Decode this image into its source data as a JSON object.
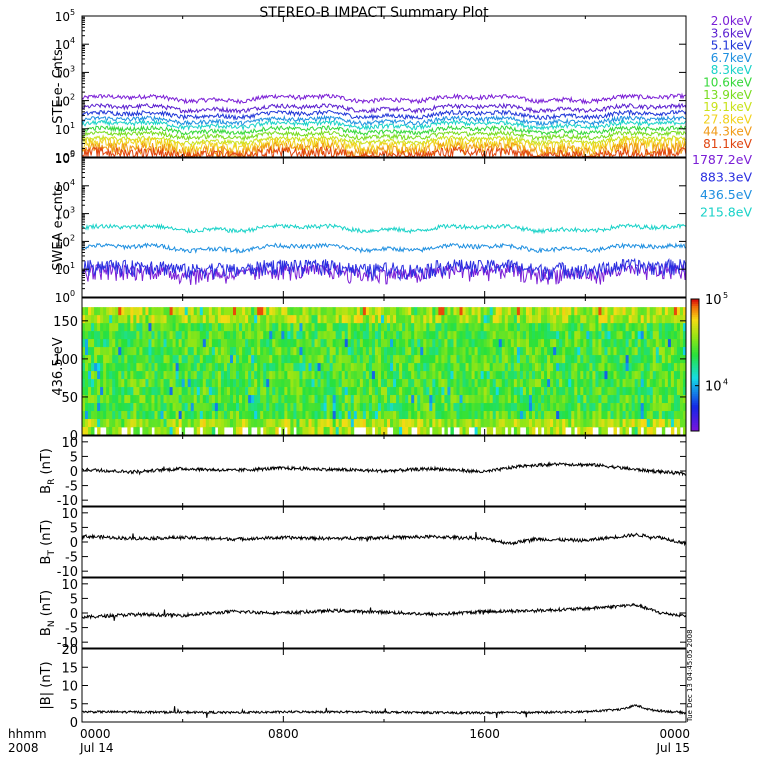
{
  "title": "STEREO-B IMPACT Summary Plot",
  "vertical_stamp": "Tue Dec 13 04:45:05 2008",
  "time_axis": {
    "label_line1": "hhmm",
    "label_line2": "2008",
    "ticks": [
      {
        "hour": 0,
        "line1": "0000",
        "line2": "Jul 14"
      },
      {
        "hour": 8,
        "line1": "0800",
        "line2": ""
      },
      {
        "hour": 16,
        "line1": "1600",
        "line2": ""
      },
      {
        "hour": 24,
        "line1": "0000",
        "line2": "Jul 15"
      }
    ],
    "xlim_hours": [
      0,
      24
    ]
  },
  "chart_data": [
    {
      "id": "ste",
      "type": "line",
      "ylabel": "STE e- Cnts",
      "yscale": "log",
      "ylim": [
        1,
        100000
      ],
      "ytick_exponents": [
        0,
        1,
        2,
        3,
        4,
        5
      ],
      "series": [
        {
          "name": "2.0keV",
          "color": "#7b1fd6",
          "level": 120
        },
        {
          "name": "3.6keV",
          "color": "#5a1fd0",
          "level": 55
        },
        {
          "name": "5.1keV",
          "color": "#2036d8",
          "level": 32
        },
        {
          "name": "6.7keV",
          "color": "#1e8fe0",
          "level": 20
        },
        {
          "name": "8.3keV",
          "color": "#19d2c8",
          "level": 14
        },
        {
          "name": "10.6keV",
          "color": "#35d83a",
          "level": 9
        },
        {
          "name": "13.9keV",
          "color": "#78dc1e",
          "level": 6
        },
        {
          "name": "19.1keV",
          "color": "#c8e21a",
          "level": 4
        },
        {
          "name": "27.8keV",
          "color": "#f0d21c",
          "level": 2.8
        },
        {
          "name": "44.3keV",
          "color": "#f09a17",
          "level": 1.9
        },
        {
          "name": "81.1keV",
          "color": "#e0440f",
          "level": 1.3
        }
      ]
    },
    {
      "id": "swea",
      "type": "line",
      "ylabel": "SWEA e- cnts",
      "yscale": "log",
      "ylim": [
        1,
        100000
      ],
      "ytick_exponents": [
        0,
        1,
        2,
        3,
        4,
        5
      ],
      "series": [
        {
          "name": "1787.2eV",
          "color": "#7b1fd6",
          "level": 8
        },
        {
          "name": "883.3eV",
          "color": "#2a2ee0",
          "level": 12
        },
        {
          "name": "436.5eV",
          "color": "#1e8fe0",
          "level": 60
        },
        {
          "name": "215.8eV",
          "color": "#19d2c8",
          "level": 300
        }
      ]
    },
    {
      "id": "pad",
      "type": "heatmap",
      "ylabel": "436.5 eV",
      "ylim": [
        0,
        180
      ],
      "yticks": [
        0,
        50,
        100,
        150
      ],
      "colorbar": {
        "scale": "log",
        "range": [
          3000,
          100000
        ],
        "ticks": [
          {
            "exp": 4,
            "label": "10"
          },
          {
            "exp": 5,
            "label": "10"
          }
        ]
      }
    },
    {
      "id": "br",
      "type": "line",
      "ylabel_main": "B",
      "ylabel_sub": "R",
      "ylabel_unit": " (nT)",
      "ylim": [
        -12,
        12
      ],
      "yticks": [
        -10,
        -5,
        0,
        5,
        10
      ],
      "segments": [
        [
          0,
          0.5
        ],
        [
          2,
          -0.3
        ],
        [
          4,
          0.8
        ],
        [
          6,
          0.2
        ],
        [
          8,
          1.0
        ],
        [
          10,
          0.5
        ],
        [
          12,
          0.0
        ],
        [
          14,
          0.8
        ],
        [
          16,
          -0.3
        ],
        [
          17.5,
          1.8
        ],
        [
          19,
          2.4
        ],
        [
          20.5,
          2.0
        ],
        [
          22,
          0.5
        ],
        [
          24,
          -1.0
        ]
      ]
    },
    {
      "id": "bt",
      "type": "line",
      "ylabel_main": "B",
      "ylabel_sub": "T",
      "ylabel_unit": " (nT)",
      "ylim": [
        -12,
        12
      ],
      "yticks": [
        -10,
        -5,
        0,
        5,
        10
      ],
      "segments": [
        [
          0,
          2.0
        ],
        [
          2,
          1.2
        ],
        [
          4,
          1.5
        ],
        [
          6,
          1.0
        ],
        [
          8,
          1.5
        ],
        [
          10,
          1.2
        ],
        [
          12,
          1.5
        ],
        [
          14,
          1.8
        ],
        [
          16,
          1.2
        ],
        [
          17,
          -0.5
        ],
        [
          18,
          1.0
        ],
        [
          20,
          0.5
        ],
        [
          22,
          2.5
        ],
        [
          23,
          1.5
        ],
        [
          24,
          -0.5
        ]
      ]
    },
    {
      "id": "bn",
      "type": "line",
      "ylabel_main": "B",
      "ylabel_sub": "N",
      "ylabel_unit": " (nT)",
      "ylim": [
        -12,
        12
      ],
      "yticks": [
        -10,
        -5,
        0,
        5,
        10
      ],
      "segments": [
        [
          0,
          -1.5
        ],
        [
          2,
          -0.5
        ],
        [
          4,
          -0.8
        ],
        [
          6,
          0.5
        ],
        [
          8,
          0.0
        ],
        [
          10,
          0.8
        ],
        [
          12,
          0.3
        ],
        [
          14,
          -0.5
        ],
        [
          16,
          0.5
        ],
        [
          18,
          0.8
        ],
        [
          20,
          1.5
        ],
        [
          22,
          2.8
        ],
        [
          23,
          0.0
        ],
        [
          24,
          -1.0
        ]
      ]
    },
    {
      "id": "bmag",
      "type": "line",
      "ylabel_main": "|B|",
      "ylabel_sub": "",
      "ylabel_unit": " (nT)",
      "ylim": [
        0,
        20
      ],
      "yticks": [
        0,
        5,
        10,
        15,
        20
      ],
      "segments": [
        [
          0,
          2.8
        ],
        [
          3,
          2.7
        ],
        [
          6,
          2.6
        ],
        [
          9,
          2.8
        ],
        [
          12,
          2.7
        ],
        [
          15,
          2.5
        ],
        [
          18,
          2.6
        ],
        [
          20,
          2.8
        ],
        [
          21.5,
          3.5
        ],
        [
          22,
          4.6
        ],
        [
          22.6,
          3.3
        ],
        [
          24,
          2.5
        ]
      ]
    }
  ]
}
